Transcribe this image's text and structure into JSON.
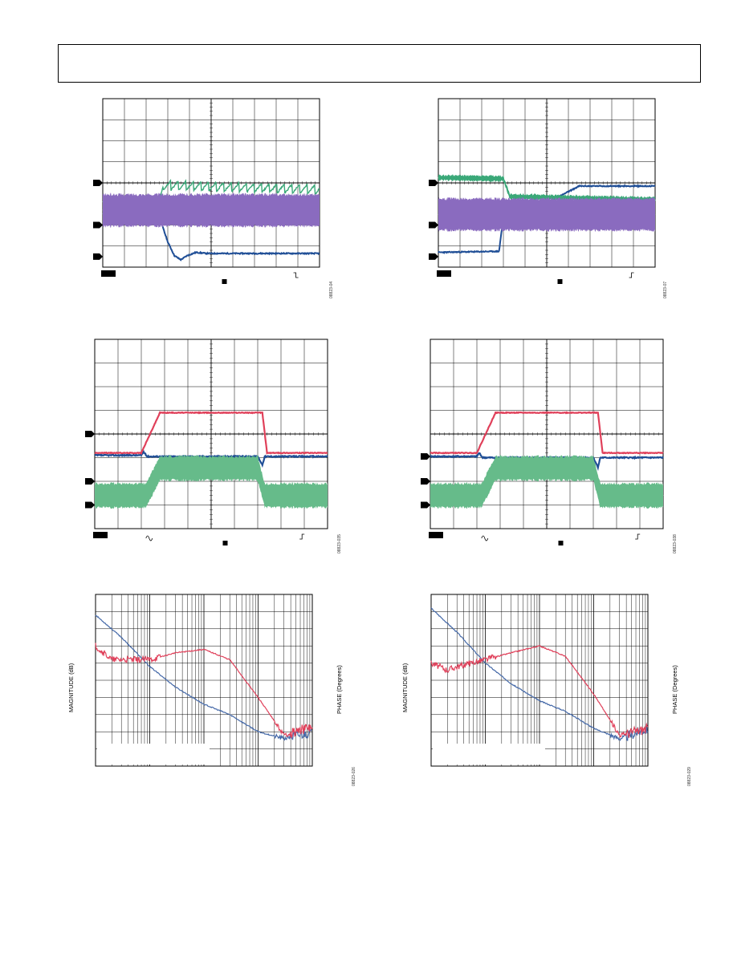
{
  "page": {
    "header": {
      "text": ""
    }
  },
  "figures": [
    {
      "id": "fig-scope-1",
      "figure_id": "08823-04",
      "traces": [
        {
          "name": "ch1",
          "color": "#1f4e96"
        },
        {
          "name": "ch2",
          "color": "#3aa878"
        },
        {
          "name": "ch3",
          "color": "#8a6bbf"
        }
      ]
    },
    {
      "id": "fig-scope-2",
      "figure_id": "08823-07",
      "traces": [
        {
          "name": "ch1",
          "color": "#1f4e96"
        },
        {
          "name": "ch2",
          "color": "#3aa878"
        },
        {
          "name": "ch3",
          "color": "#8a6bbf"
        }
      ]
    },
    {
      "id": "fig-scope-3",
      "figure_id": "08823-035",
      "traces": [
        {
          "name": "ch1",
          "color": "#1f4e96"
        },
        {
          "name": "ch2",
          "color": "#e0405a"
        },
        {
          "name": "ch3",
          "color": "#66bb8a"
        }
      ]
    },
    {
      "id": "fig-scope-4",
      "figure_id": "08823-038",
      "traces": [
        {
          "name": "ch1",
          "color": "#1f4e96"
        },
        {
          "name": "ch2",
          "color": "#e0405a"
        },
        {
          "name": "ch3",
          "color": "#66bb8a"
        }
      ]
    },
    {
      "id": "fig-bode-1",
      "figure_id": "08823-026",
      "ylabel_left": "MAGNITUDE (dB)",
      "ylabel_right": "PHASE (Degrees)"
    },
    {
      "id": "fig-bode-2",
      "figure_id": "08823-029",
      "ylabel_left": "MAGNITUDE (dB)",
      "ylabel_right": "PHASE (Degrees)"
    }
  ],
  "chart_data": [
    {
      "type": "line",
      "name_hint": "scope-1",
      "grid": true,
      "series": [
        {
          "x": [
            0,
            2.4,
            2.7,
            3.0,
            3.3,
            3.6,
            3.9,
            4.3,
            4.8,
            10
          ],
          "y": [
            -1.5,
            -1.5,
            -1.9,
            -2.8,
            -3.45,
            -3.65,
            -3.45,
            -3.3,
            -3.35,
            -3.35
          ]
        },
        {
          "x": [
            0,
            2.6,
            2.8,
            10
          ],
          "y": [
            -0.9,
            -0.9,
            -0.1,
            -0.3
          ]
        },
        {
          "x": [
            0,
            10
          ],
          "y": [
            -1.3,
            -1.3
          ]
        }
      ]
    },
    {
      "type": "line",
      "name_hint": "scope-2",
      "grid": true,
      "series": [
        {
          "x": [
            0,
            2.8,
            3.0,
            3.1,
            3.3,
            3.6,
            6.5,
            10
          ],
          "y": [
            -3.3,
            -3.25,
            -1.6,
            -2.0,
            -1.8,
            -1.7,
            -0.15,
            -0.15
          ]
        },
        {
          "x": [
            0,
            3.0,
            3.3,
            10
          ],
          "y": [
            0.25,
            0.2,
            -0.65,
            -0.8
          ]
        },
        {
          "x": [
            0,
            10
          ],
          "y": [
            -1.5,
            -1.5
          ]
        }
      ]
    },
    {
      "type": "line",
      "name_hint": "scope-3",
      "grid": true,
      "series": [
        {
          "x": [
            0,
            2.0,
            2.1,
            2.25,
            7.0,
            7.2,
            7.3,
            10
          ],
          "y": [
            -0.9,
            -0.9,
            -0.75,
            -0.95,
            -0.95,
            -1.3,
            -0.95,
            -0.95
          ]
        },
        {
          "x": [
            0,
            2.0,
            2.8,
            7.2,
            7.4,
            10
          ],
          "y": [
            -0.8,
            -0.8,
            0.9,
            0.9,
            -0.8,
            -0.8
          ]
        },
        {
          "x": [
            0,
            2.2,
            2.8,
            7.0,
            7.3,
            10
          ],
          "y": [
            -2.6,
            -2.6,
            -1.45,
            -1.45,
            -2.6,
            -2.6
          ]
        }
      ]
    },
    {
      "type": "line",
      "name_hint": "scope-4",
      "grid": true,
      "series": [
        {
          "x": [
            0,
            2.0,
            2.1,
            2.25,
            7.0,
            7.2,
            7.3,
            10
          ],
          "y": [
            -0.95,
            -0.95,
            -0.8,
            -1.0,
            -1.0,
            -1.4,
            -1.0,
            -1.0
          ]
        },
        {
          "x": [
            0,
            2.0,
            2.8,
            7.2,
            7.4,
            10
          ],
          "y": [
            -0.8,
            -0.8,
            0.9,
            0.9,
            -0.8,
            -0.8
          ]
        },
        {
          "x": [
            0,
            2.2,
            2.8,
            7.0,
            7.3,
            10
          ],
          "y": [
            -2.6,
            -2.6,
            -1.45,
            -1.45,
            -2.6,
            -2.6
          ]
        }
      ]
    },
    {
      "type": "line",
      "name_hint": "bode-1",
      "grid": true,
      "xscale": "log",
      "series": [
        {
          "x": [
            10,
            30,
            100,
            300,
            1000,
            3000,
            10000,
            30000,
            100000
          ],
          "y": [
            0.88,
            0.75,
            0.58,
            0.46,
            0.36,
            0.3,
            0.2,
            0.16,
            0.2
          ]
        },
        {
          "x": [
            10,
            20,
            30,
            100,
            300,
            1000,
            3000,
            10000,
            30000,
            100000
          ],
          "y": [
            0.7,
            0.62,
            0.62,
            0.62,
            0.66,
            0.68,
            0.62,
            0.4,
            0.18,
            0.23
          ]
        }
      ]
    },
    {
      "type": "line",
      "name_hint": "bode-2",
      "grid": true,
      "xscale": "log",
      "series": [
        {
          "x": [
            10,
            30,
            100,
            300,
            1000,
            3000,
            10000,
            30000,
            100000
          ],
          "y": [
            0.92,
            0.78,
            0.6,
            0.48,
            0.38,
            0.32,
            0.22,
            0.16,
            0.22
          ]
        },
        {
          "x": [
            10,
            20,
            30,
            100,
            300,
            1000,
            3000,
            10000,
            30000,
            100000
          ],
          "y": [
            0.6,
            0.56,
            0.58,
            0.62,
            0.66,
            0.7,
            0.64,
            0.42,
            0.18,
            0.22
          ]
        }
      ]
    }
  ]
}
